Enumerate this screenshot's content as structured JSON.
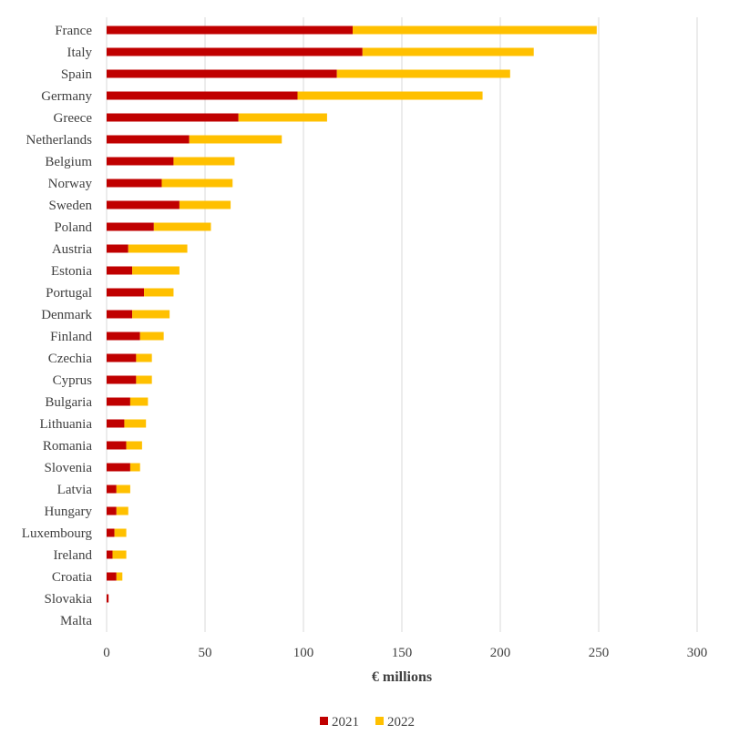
{
  "chart_data": {
    "type": "bar",
    "orientation": "horizontal",
    "stacked": true,
    "categories": [
      "France",
      "Italy",
      "Spain",
      "Germany",
      "Greece",
      "Netherlands",
      "Belgium",
      "Norway",
      "Sweden",
      "Poland",
      "Austria",
      "Estonia",
      "Portugal",
      "Denmark",
      "Finland",
      "Czechia",
      "Cyprus",
      "Bulgaria",
      "Lithuania",
      "Romania",
      "Slovenia",
      "Latvia",
      "Hungary",
      "Luxembourg",
      "Ireland",
      "Croatia",
      "Slovakia",
      "Malta"
    ],
    "series": [
      {
        "name": "2021",
        "color": "#C00000",
        "values": [
          125,
          130,
          117,
          97,
          67,
          42,
          34,
          28,
          37,
          24,
          11,
          13,
          19,
          13,
          17,
          15,
          15,
          12,
          9,
          10,
          12,
          5,
          5,
          4,
          3,
          5,
          1,
          0
        ]
      },
      {
        "name": "2022",
        "color": "#FFC000",
        "values": [
          124,
          87,
          88,
          94,
          45,
          47,
          31,
          36,
          26,
          29,
          30,
          24,
          15,
          19,
          12,
          8,
          8,
          9,
          11,
          8,
          5,
          7,
          6,
          6,
          7,
          3,
          0,
          0
        ]
      }
    ],
    "xlabel": "€ millions",
    "xlim": [
      0,
      300
    ],
    "xticks": [
      0,
      50,
      100,
      150,
      200,
      250,
      300
    ],
    "grid": "vertical",
    "legend_position": "bottom"
  }
}
